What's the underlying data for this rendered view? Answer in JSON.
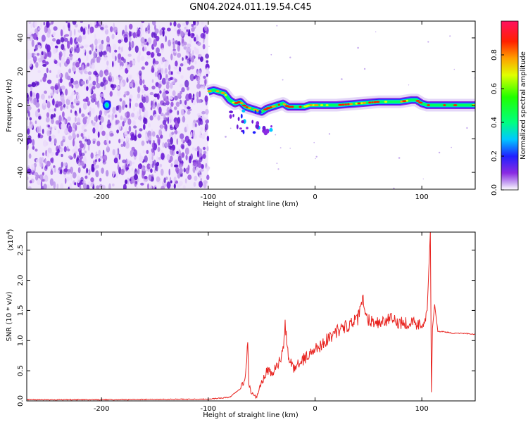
{
  "title": "GN04.2024.011.19.54.C45",
  "colors": {
    "line": "#e8231f",
    "axis": "#000000"
  },
  "colorbar": {
    "label": "Normalized spectral amplitude",
    "ticks": [
      "0.0",
      "0.2",
      "0.4",
      "0.6",
      "0.8"
    ],
    "range": [
      0,
      1
    ]
  },
  "chart_data": [
    {
      "type": "heatmap",
      "xlabel": "Height of straight line (km)",
      "ylabel": "Frequency (Hz)",
      "xlim": [
        -270,
        150
      ],
      "ylim": [
        -50,
        50
      ],
      "x_ticks": [
        -200,
        -100,
        0,
        100
      ],
      "x_tick_labels": [
        "-200",
        "-100",
        "0",
        "100"
      ],
      "y_ticks": [
        -40,
        -20,
        0,
        20,
        40
      ],
      "y_tick_labels": [
        "-40",
        "-20",
        "0",
        "20",
        "40"
      ],
      "noise_region": {
        "x": [
          -270,
          -100
        ],
        "y": [
          -50,
          50
        ]
      },
      "ridge": {
        "x": [
          -100,
          -95,
          -90,
          -85,
          -80,
          -75,
          -70,
          -65,
          -60,
          -55,
          -50,
          -45,
          -40,
          -35,
          -30,
          -25,
          -20,
          -15,
          -10,
          -5,
          0,
          20,
          40,
          60,
          80,
          90,
          95,
          100,
          105,
          110,
          130,
          150
        ],
        "freq": [
          8,
          9,
          8,
          7,
          3,
          1,
          2,
          -1,
          -2,
          -3,
          -4,
          -2,
          -1,
          0,
          1,
          -1,
          -1,
          -1,
          -1,
          0,
          0,
          0,
          1,
          2,
          2,
          3,
          3,
          1,
          0,
          0,
          0,
          0
        ]
      }
    },
    {
      "type": "line",
      "xlabel": "Height of straight line (km)",
      "ylabel": "SNR (10 * v/v)",
      "y_multiplier": "(x10",
      "y_multiplier_exp": "4",
      "xlim": [
        -270,
        150
      ],
      "ylim": [
        0,
        2.8
      ],
      "x_ticks": [
        -200,
        -100,
        0,
        100
      ],
      "x_tick_labels": [
        "-200",
        "-100",
        "0",
        "100"
      ],
      "y_ticks": [
        0,
        0.5,
        1.0,
        1.5,
        2.0,
        2.5
      ],
      "y_tick_labels": [
        "0.0",
        "0.5",
        "1.0",
        "1.5",
        "2.0",
        "2.5"
      ],
      "series": [
        {
          "x": [
            -270,
            -200,
            -100,
            -80,
            -70,
            -65,
            -63,
            -62,
            -60,
            -55,
            -50,
            -45,
            -40,
            -35,
            -30,
            -28,
            -25,
            -20,
            -10,
            0,
            10,
            20,
            30,
            40,
            45,
            47,
            50,
            60,
            70,
            80,
            90,
            100,
            105,
            108,
            109,
            110,
            112,
            115,
            120,
            130,
            140,
            150
          ],
          "y": [
            0.02,
            0.02,
            0.03,
            0.06,
            0.2,
            0.4,
            0.95,
            0.3,
            0.15,
            0.05,
            0.3,
            0.5,
            0.45,
            0.6,
            0.8,
            1.25,
            0.7,
            0.55,
            0.7,
            0.85,
            1.0,
            1.15,
            1.25,
            1.35,
            1.7,
            1.4,
            1.35,
            1.3,
            1.35,
            1.3,
            1.3,
            1.25,
            1.5,
            2.8,
            0.15,
            1.2,
            1.6,
            1.15,
            1.15,
            1.12,
            1.12,
            1.1
          ]
        }
      ]
    }
  ]
}
